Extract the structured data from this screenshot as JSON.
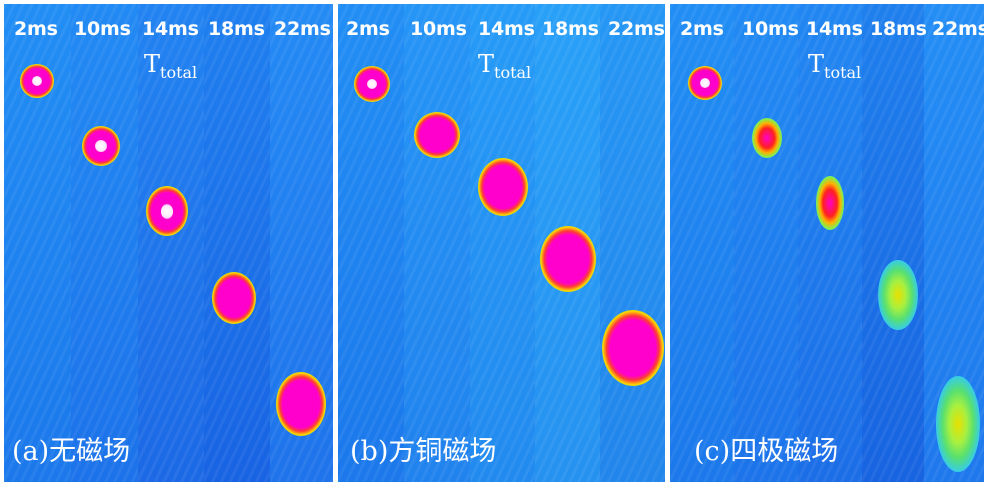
{
  "panels": [
    {
      "caption": "(a)无磁场",
      "times": [
        "2ms",
        "10ms",
        "14ms",
        "18ms",
        "22ms"
      ],
      "ttotal": {
        "base": "T",
        "sub": "total"
      }
    },
    {
      "caption": "(b)方铜磁场",
      "times": [
        "2ms",
        "10ms",
        "14ms",
        "18ms",
        "22ms"
      ],
      "ttotal": {
        "base": "T",
        "sub": "total"
      }
    },
    {
      "caption": "(c)四极磁场",
      "times": [
        "2ms",
        "10ms",
        "14ms",
        "18ms",
        "22ms"
      ],
      "ttotal": {
        "base": "T",
        "sub": "total"
      }
    }
  ],
  "colors": {
    "background": "#1560d8",
    "peak": "#ff00cc",
    "mid": "#ffd000",
    "edge": "#7df050"
  }
}
